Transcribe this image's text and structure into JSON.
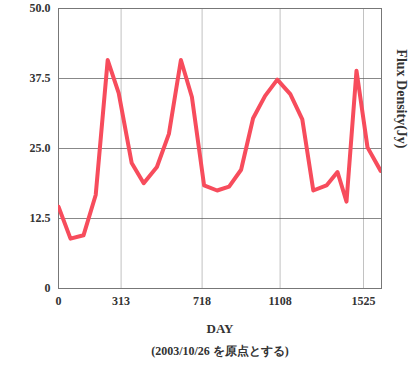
{
  "chart_data": {
    "type": "line",
    "x_label": "DAY",
    "x_subtitle": "(2003/10/26 を原点とする)",
    "y_label": "Flux Density(Jy)",
    "x": [
      0,
      60,
      125,
      186,
      246,
      301,
      366,
      426,
      492,
      552,
      612,
      667,
      728,
      793,
      853,
      913,
      973,
      1033,
      1094,
      1159,
      1219,
      1274,
      1340,
      1395,
      1440,
      1490,
      1545,
      1611
    ],
    "values": [
      14.6,
      8.9,
      9.5,
      16.7,
      40.8,
      34.9,
      22.4,
      18.8,
      21.7,
      27.6,
      40.8,
      34.2,
      18.4,
      17.5,
      18.2,
      21.2,
      30.4,
      34.4,
      37.3,
      34.7,
      30.2,
      17.5,
      18.4,
      20.8,
      15.5,
      38.9,
      25.2,
      21.0
    ],
    "color": "#f74c5c",
    "xlim": [
      0,
      1615
    ],
    "xticks": [
      0,
      313,
      718,
      1108,
      1525
    ],
    "ylim": [
      0,
      50
    ],
    "yticks": [
      0,
      12.5,
      {
        "value": 25,
        "label": "25.0"
      },
      37.5,
      {
        "value": 50,
        "label": "50.0"
      }
    ],
    "grid": true
  }
}
